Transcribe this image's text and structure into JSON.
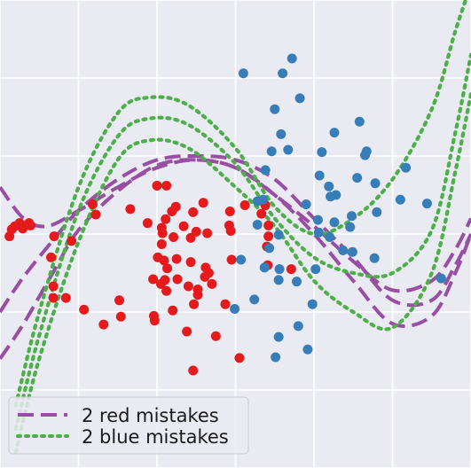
{
  "chart_data": {
    "type": "scatter",
    "xlim": [
      -3,
      3
    ],
    "ylim": [
      -3,
      3
    ],
    "grid": true,
    "background": "#EAEAF2",
    "gridColor": "#ffffff",
    "legend": {
      "placement": "bottom-left",
      "entries": [
        {
          "label": "2 red mistakes",
          "color": "#984EA3",
          "style": "dashed"
        },
        {
          "label": "2 blue mistakes",
          "color": "#4DAF4A",
          "style": "dotted"
        }
      ]
    },
    "series": [
      {
        "color": "#E41A1C",
        "points": [
          [
            -1.0,
            0.62
          ],
          [
            -0.88,
            0.62
          ],
          [
            -1.34,
            0.32
          ],
          [
            -2.75,
            0.14
          ],
          [
            -2.81,
            0.1
          ],
          [
            -2.85,
            0.06
          ],
          [
            -2.63,
            0.14
          ],
          [
            -2.88,
            -0.03
          ],
          [
            -2.31,
            -0.03
          ],
          [
            -2.09,
            -0.09
          ],
          [
            -0.41,
            0.4
          ],
          [
            -0.81,
            0.29
          ],
          [
            -0.76,
            0.35
          ],
          [
            -1.12,
            0.14
          ],
          [
            -0.89,
            0.19
          ],
          [
            -0.94,
            0.08
          ],
          [
            -0.93,
            0.01
          ],
          [
            -0.79,
            -0.04
          ],
          [
            -0.94,
            -0.13
          ],
          [
            -0.99,
            -0.3
          ],
          [
            -0.91,
            -0.34
          ],
          [
            -0.75,
            -0.32
          ],
          [
            -0.87,
            -0.44
          ],
          [
            -0.9,
            -0.59
          ],
          [
            -0.95,
            -0.64
          ],
          [
            -1.05,
            -0.58
          ],
          [
            -0.66,
            0.1
          ],
          [
            -0.36,
            0.01
          ],
          [
            -0.06,
            0.04
          ],
          [
            -0.08,
            0.11
          ],
          [
            -0.07,
            0.29
          ],
          [
            -0.57,
            -0.05
          ],
          [
            -0.57,
            -0.36
          ],
          [
            -0.38,
            -0.43
          ],
          [
            -0.34,
            -0.5
          ],
          [
            -0.3,
            -0.64
          ],
          [
            -0.05,
            -0.33
          ],
          [
            -0.88,
            -0.73
          ],
          [
            -0.74,
            -0.58
          ],
          [
            -0.6,
            -0.67
          ],
          [
            -0.48,
            -0.78
          ],
          [
            -0.53,
            -0.9
          ],
          [
            -2.35,
            -0.3
          ],
          [
            -2.32,
            -0.67
          ],
          [
            -2.16,
            -0.82
          ],
          [
            -1.93,
            -0.97
          ],
          [
            -1.46,
            -1.06
          ],
          [
            -1.48,
            -0.85
          ],
          [
            -0.8,
            -0.98
          ],
          [
            0.38,
            0.37
          ],
          [
            0.33,
            0.26
          ],
          [
            0.42,
            0.11
          ],
          [
            0.42,
            -0.03
          ],
          [
            0.4,
            -0.16
          ],
          [
            0.12,
            0.37
          ],
          [
            0.41,
            -0.4
          ],
          [
            0.71,
            -0.45
          ],
          [
            -1.82,
            0.38
          ],
          [
            -1.78,
            0.25
          ],
          [
            -0.54,
            0.28
          ],
          [
            -0.5,
            0.03
          ],
          [
            -0.13,
            -0.9
          ],
          [
            -0.39,
            -0.55
          ],
          [
            -1.03,
            -1.11
          ],
          [
            -1.68,
            -1.16
          ],
          [
            -1.04,
            -1.05
          ],
          [
            -2.71,
            0.07
          ],
          [
            -2.61,
            0.11
          ],
          [
            -0.48,
            -0.71
          ],
          [
            -2.32,
            -0.82
          ],
          [
            -0.25,
            -1.31
          ],
          [
            0.05,
            -1.59
          ],
          [
            -0.62,
            -1.25
          ],
          [
            -0.54,
            -1.75
          ]
        ]
      },
      {
        "color": "#377EB8",
        "points": [
          [
            0.1,
            2.06
          ],
          [
            0.6,
            2.06
          ],
          [
            0.5,
            1.6
          ],
          [
            0.72,
            2.25
          ],
          [
            0.82,
            1.74
          ],
          [
            0.58,
            1.28
          ],
          [
            1.26,
            1.3
          ],
          [
            1.58,
            1.44
          ],
          [
            0.46,
            1.06
          ],
          [
            0.67,
            1.08
          ],
          [
            1.1,
            1.05
          ],
          [
            1.07,
            0.75
          ],
          [
            1.65,
            1.01
          ],
          [
            1.78,
            0.65
          ],
          [
            2.17,
            0.85
          ],
          [
            2.44,
            0.39
          ],
          [
            0.28,
            0.42
          ],
          [
            0.35,
            0.44
          ],
          [
            1.05,
            0.18
          ],
          [
            1.21,
            0.48
          ],
          [
            0.9,
            0.38
          ],
          [
            1.28,
            0.5
          ],
          [
            1.06,
            0.02
          ],
          [
            0.55,
            -0.01
          ],
          [
            0.28,
            0.12
          ],
          [
            0.43,
            -0.18
          ],
          [
            1.2,
            -0.04
          ],
          [
            1.49,
            -0.23
          ],
          [
            1.26,
            0.15
          ],
          [
            2.62,
            -0.57
          ],
          [
            0.37,
            -0.43
          ],
          [
            0.56,
            -0.45
          ],
          [
            1.02,
            -0.45
          ],
          [
            1.46,
            0.09
          ],
          [
            1.8,
            0.28
          ],
          [
            0.07,
            -0.33
          ],
          [
            1.55,
            0.72
          ],
          [
            1.67,
            1.06
          ],
          [
            1.48,
            0.23
          ],
          [
            2.1,
            0.44
          ],
          [
            0.38,
            0.82
          ],
          [
            0.55,
            -0.59
          ],
          [
            1.19,
            0.61
          ],
          [
            0.78,
            -0.61
          ],
          [
            1.77,
            -0.31
          ],
          [
            1.37,
            -0.21
          ],
          [
            0.98,
            -0.9
          ],
          [
            -0.01,
            -0.96
          ],
          [
            0.24,
            -0.84
          ],
          [
            0.8,
            -1.18
          ],
          [
            0.55,
            -1.32
          ],
          [
            0.92,
            -1.48
          ],
          [
            0.51,
            -1.58
          ]
        ]
      }
    ],
    "curves": [
      {
        "legend": 0,
        "color": "#984EA3",
        "style": "dashed",
        "points": [
          [
            -3,
            0.6
          ],
          [
            -2.7,
            0.2
          ],
          [
            -2.4,
            0.1
          ],
          [
            -2,
            0.3
          ],
          [
            -1.5,
            0.6
          ],
          [
            -1,
            0.85
          ],
          [
            -0.5,
            0.95
          ],
          [
            0,
            0.85
          ],
          [
            0.5,
            0.5
          ],
          [
            1,
            0.1
          ],
          [
            1.5,
            -0.35
          ],
          [
            2,
            -0.72
          ],
          [
            2.5,
            -0.6
          ],
          [
            2.8,
            -0.2
          ],
          [
            3,
            0.2
          ]
        ]
      },
      {
        "legend": 0,
        "color": "#984EA3",
        "style": "dashed",
        "points": [
          [
            -3,
            -1.0
          ],
          [
            -2.7,
            -0.55
          ],
          [
            -2.3,
            -0.05
          ],
          [
            -2,
            0.3
          ],
          [
            -1.5,
            0.7
          ],
          [
            -1,
            0.95
          ],
          [
            -0.5,
            1.0
          ],
          [
            0,
            0.95
          ],
          [
            0.5,
            0.7
          ],
          [
            1,
            0.2
          ],
          [
            1.5,
            -0.3
          ],
          [
            2,
            -0.85
          ],
          [
            2.5,
            -0.85
          ],
          [
            2.8,
            -0.4
          ],
          [
            3,
            0.0
          ]
        ]
      },
      {
        "legend": 0,
        "color": "#984EA3",
        "style": "dashed",
        "points": [
          [
            -3,
            -1.6
          ],
          [
            -2.7,
            -1.15
          ],
          [
            -2.3,
            -0.45
          ],
          [
            -2,
            0.05
          ],
          [
            -1.5,
            0.55
          ],
          [
            -1,
            0.88
          ],
          [
            -0.5,
            0.95
          ],
          [
            0,
            0.85
          ],
          [
            0.5,
            0.5
          ],
          [
            1,
            0.0
          ],
          [
            1.5,
            -0.6
          ],
          [
            2,
            -1.15
          ],
          [
            2.5,
            -1.05
          ],
          [
            2.8,
            -0.5
          ],
          [
            3,
            0.0
          ]
        ]
      },
      {
        "legend": 1,
        "color": "#4DAF4A",
        "style": "dotted",
        "points": [
          [
            -2.8,
            -2.5
          ],
          [
            -2.5,
            -1.3
          ],
          [
            -2,
            0.3
          ],
          [
            -1.5,
            1.25
          ],
          [
            -1.1,
            1.48
          ],
          [
            -0.6,
            1.4
          ],
          [
            0,
            0.9
          ],
          [
            0.5,
            0.2
          ],
          [
            1,
            -0.3
          ],
          [
            1.5,
            -0.5
          ],
          [
            2,
            -0.5
          ],
          [
            2.5,
            0.05
          ],
          [
            2.8,
            1.3
          ],
          [
            3,
            2.3
          ]
        ]
      },
      {
        "legend": 1,
        "color": "#4DAF4A",
        "style": "dotted",
        "points": [
          [
            -2.8,
            -2.8
          ],
          [
            -2.5,
            -1.6
          ],
          [
            -2,
            -0.1
          ],
          [
            -1.5,
            0.95
          ],
          [
            -1.1,
            1.2
          ],
          [
            -0.6,
            1.1
          ],
          [
            0,
            0.6
          ],
          [
            0.5,
            0.1
          ],
          [
            1,
            -0.6
          ],
          [
            1.5,
            -1.0
          ],
          [
            2,
            -1.2
          ],
          [
            2.5,
            -0.5
          ],
          [
            2.8,
            0.8
          ],
          [
            3,
            1.8
          ]
        ]
      },
      {
        "legend": 1,
        "color": "#4DAF4A",
        "style": "dotted",
        "points": [
          [
            -2.8,
            -2.2
          ],
          [
            -2.5,
            -1.0
          ],
          [
            -2,
            0.6
          ],
          [
            -1.5,
            1.55
          ],
          [
            -1.1,
            1.75
          ],
          [
            -0.6,
            1.65
          ],
          [
            0,
            1.1
          ],
          [
            0.5,
            0.35
          ],
          [
            1,
            0.0
          ],
          [
            1.5,
            0.2
          ],
          [
            2,
            0.7
          ],
          [
            2.5,
            1.6
          ],
          [
            2.8,
            2.6
          ],
          [
            3,
            3.2
          ]
        ]
      }
    ]
  }
}
